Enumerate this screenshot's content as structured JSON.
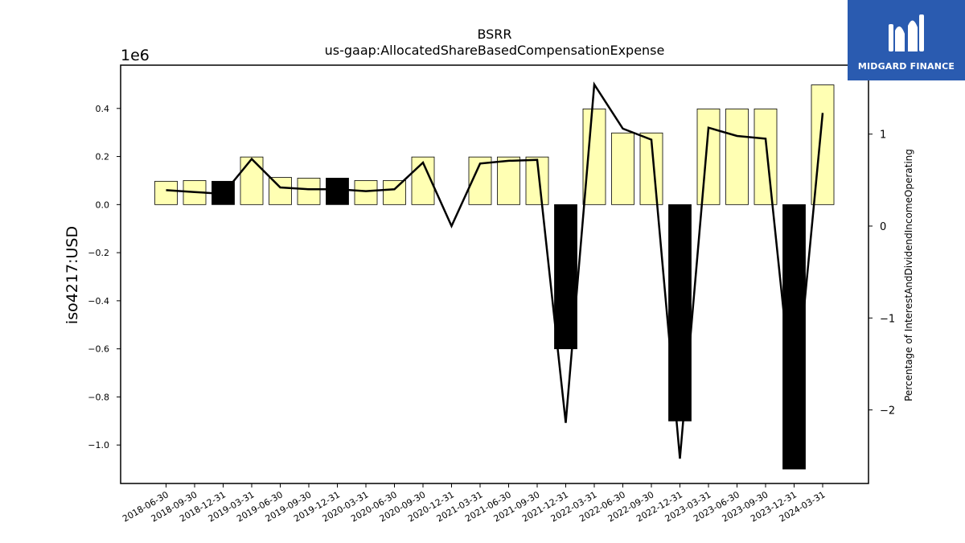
{
  "brand": {
    "name": "MIDGARD FINANCE",
    "bg_color": "#2a5bb0"
  },
  "chart_data": {
    "type": "bar",
    "title": "BSRR",
    "subtitle": "us-gaap:AllocatedShareBasedCompensationExpense",
    "ylabel": "iso4217:USD",
    "y_offset_label": "1e6",
    "y2label": "Percentage of InterestAndDividendIncomeOperating",
    "ylim": [
      -1.16,
      0.58
    ],
    "y2lim": [
      -2.8,
      1.75
    ],
    "yticks": [
      -1.0,
      -0.8,
      -0.6,
      -0.4,
      -0.2,
      0.0,
      0.2,
      0.4
    ],
    "y2ticks": [
      -2,
      -1,
      0,
      1
    ],
    "categories": [
      "2018-06-30",
      "2018-09-30",
      "2018-12-31",
      "2019-03-31",
      "2019-06-30",
      "2019-09-30",
      "2019-12-31",
      "2020-03-31",
      "2020-06-30",
      "2020-09-30",
      "2020-12-31",
      "2021-03-31",
      "2021-06-30",
      "2021-09-30",
      "2021-12-31",
      "2022-03-31",
      "2022-06-30",
      "2022-09-30",
      "2022-12-31",
      "2023-03-31",
      "2023-06-30",
      "2023-09-30",
      "2023-12-31",
      "2024-03-31"
    ],
    "series": [
      {
        "kind": "bar",
        "axis": "left",
        "values": [
          0.097,
          0.1,
          0.097,
          0.198,
          0.113,
          0.11,
          0.11,
          0.1,
          0.1,
          0.198,
          null,
          0.198,
          0.198,
          0.198,
          -0.6,
          0.398,
          0.298,
          0.298,
          -0.9,
          0.398,
          0.398,
          0.398,
          -1.1,
          0.498
        ],
        "colors": [
          "#ffffb3",
          "#ffffb3",
          "#000000",
          "#ffffb3",
          "#ffffb3",
          "#ffffb3",
          "#000000",
          "#ffffb3",
          "#ffffb3",
          "#ffffb3",
          "#ffffb3",
          "#ffffb3",
          "#ffffb3",
          "#ffffb3",
          "#000000",
          "#ffffb3",
          "#ffffb3",
          "#ffffb3",
          "#000000",
          "#ffffb3",
          "#ffffb3",
          "#ffffb3",
          "#000000",
          "#ffffb3"
        ]
      },
      {
        "kind": "line",
        "axis": "right",
        "color": "#000000",
        "values": [
          0.39,
          0.37,
          0.35,
          0.73,
          0.42,
          0.4,
          0.4,
          0.38,
          0.4,
          0.69,
          0.0,
          0.68,
          0.71,
          0.72,
          -2.14,
          1.54,
          1.06,
          0.94,
          -2.53,
          1.07,
          0.98,
          0.95,
          -2.03,
          1.23
        ]
      }
    ],
    "grid": false,
    "legend": "none"
  }
}
